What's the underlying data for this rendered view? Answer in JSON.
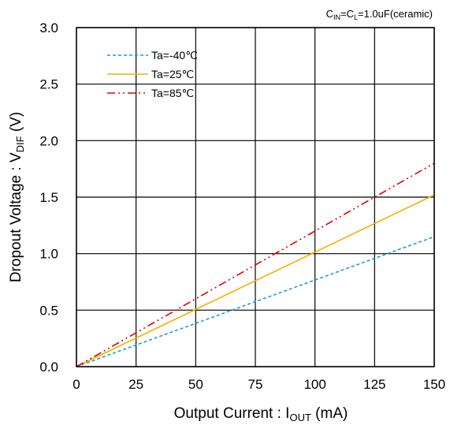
{
  "chart_data": {
    "type": "line",
    "title": "",
    "condition": {
      "c_in": "C",
      "c_in_sub": "IN",
      "c_l_eq": "=C",
      "c_l_sub": "L",
      "value": "=1.0uF(ceramic)"
    },
    "xlabel": {
      "main": "Output Current : I",
      "sub": "OUT",
      "unit": " (mA)"
    },
    "ylabel": {
      "main": "Dropout Voltage : V",
      "sub": "DIF",
      "unit": " (V)"
    },
    "xlim": [
      0,
      150
    ],
    "ylim": [
      0,
      3.0
    ],
    "xticks": [
      0,
      25,
      50,
      75,
      100,
      125,
      150
    ],
    "xtick_labels": [
      "0",
      "25",
      "50",
      "75",
      "100",
      "125",
      "150"
    ],
    "yticks": [
      0,
      0.5,
      1.0,
      1.5,
      2.0,
      2.5,
      3.0
    ],
    "ytick_labels": [
      "0.0",
      "0.5",
      "1.0",
      "1.5",
      "2.0",
      "2.5",
      "3.0"
    ],
    "grid": true,
    "legend_position": "top-left",
    "series": [
      {
        "name": "Ta=-40℃",
        "color": "#1a9bd7",
        "dash": "4,3",
        "x": [
          0,
          150
        ],
        "y": [
          0,
          1.15
        ]
      },
      {
        "name": "Ta=25℃",
        "color": "#f5b000",
        "dash": "",
        "x": [
          0,
          150
        ],
        "y": [
          0,
          1.52
        ]
      },
      {
        "name": "Ta=85℃",
        "color": "#e00000",
        "dash": "10,4,2,4,2,4",
        "x": [
          0,
          150
        ],
        "y": [
          0,
          1.8
        ]
      }
    ]
  }
}
